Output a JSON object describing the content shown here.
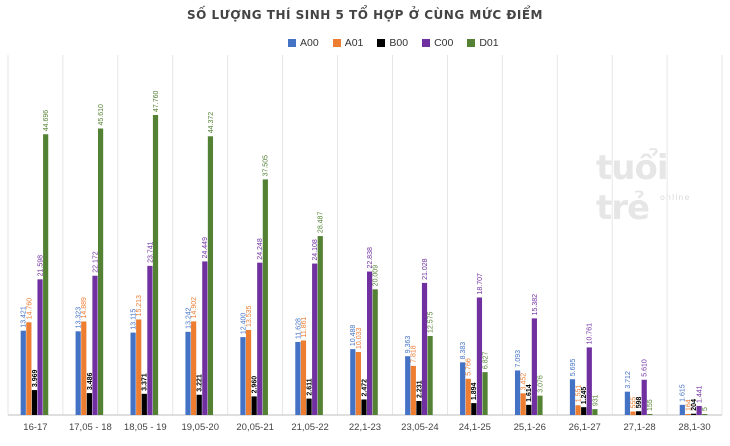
{
  "chart_data": {
    "type": "bar",
    "title": "SỐ LƯỢNG THÍ SINH 5 TỔ HỢP Ở CÙNG MỨC ĐIỂM",
    "xlabel": "",
    "ylabel": "",
    "ylim": [
      0,
      50000
    ],
    "grid": "vertical separators between categories",
    "legend_position": "top-center",
    "categories": [
      "16-17",
      "17,05 - 18",
      "18,05 - 19",
      "19,05-20",
      "20,05-21",
      "21,05-22",
      "22,1-23",
      "23,05-24",
      "24,1-25",
      "25,1-26",
      "26,1-27",
      "27,1-28",
      "28,1-30"
    ],
    "series": [
      {
        "name": "A00",
        "color": "#4472C4",
        "values": [
          13421,
          13323,
          13115,
          13242,
          12400,
          11628,
          10488,
          9363,
          8383,
          7093,
          5695,
          3712,
          1615
        ],
        "labels": [
          "13.421",
          "13.323",
          "13.115",
          "13.242",
          "12.400",
          "11.628",
          "10.488",
          "9.363",
          "8.383",
          "7.093",
          "5.695",
          "3.712",
          "1.615"
        ]
      },
      {
        "name": "A01",
        "color": "#ED7D31",
        "values": [
          14760,
          14889,
          15213,
          14902,
          13535,
          11861,
          10033,
          7818,
          5766,
          3452,
          1551,
          555,
          164
        ],
        "labels": [
          "14.760",
          "14.889",
          "15.213",
          "14.902",
          "13.535",
          "11.861",
          "10.033",
          "7.818",
          "5.766",
          "3.452",
          "1.551",
          "555",
          "164"
        ]
      },
      {
        "name": "B00",
        "color": "#000000",
        "values": [
          3969,
          3486,
          3371,
          3221,
          2960,
          2611,
          2472,
          2231,
          1894,
          1614,
          1245,
          598,
          204
        ],
        "labels": [
          "3.969",
          "3.486",
          "3.371",
          "3.221",
          "2.960",
          "2.611",
          "2.472",
          "2.231",
          "1.894",
          "1.614",
          "1.245",
          "598",
          "204"
        ]
      },
      {
        "name": "C00",
        "color": "#7030A0",
        "values": [
          21598,
          22172,
          23741,
          24449,
          24248,
          24108,
          22838,
          21028,
          18707,
          15382,
          10761,
          5610,
          1441
        ],
        "labels": [
          "21.598",
          "22.172",
          "23.741",
          "24.449",
          "24.248",
          "24.108",
          "22.838",
          "21.028",
          "18.707",
          "15.382",
          "10.761",
          "5.610",
          "1.441"
        ]
      },
      {
        "name": "D01",
        "color": "#548235",
        "values": [
          44696,
          45610,
          47760,
          44372,
          37505,
          28487,
          20009,
          12575,
          6827,
          3076,
          931,
          155,
          5
        ],
        "labels": [
          "44.696",
          "45.610",
          "47.760",
          "44.372",
          "37.505",
          "28.487",
          "20.009",
          "12.575",
          "6.827",
          "3.076",
          "931",
          "155",
          "5"
        ]
      }
    ]
  },
  "watermark": {
    "brand": "tuổi trẻ",
    "sub": "online"
  }
}
